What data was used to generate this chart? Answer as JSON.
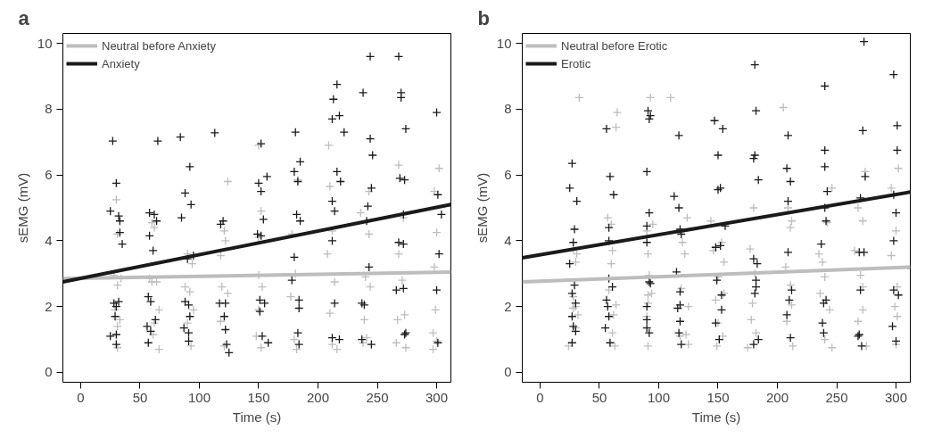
{
  "chart_data": [
    {
      "type": "scatter",
      "title": "a",
      "xlabel": "Time (s)",
      "ylabel": "sEMG (mV)",
      "xlim": [
        -15,
        312
      ],
      "ylim": [
        -0.3,
        10.3
      ],
      "xticks": [
        0,
        50,
        100,
        150,
        200,
        250,
        300
      ],
      "yticks": [
        0,
        2,
        4,
        6,
        8,
        10
      ],
      "legend": "top left",
      "grid": false,
      "series": [
        {
          "marker": "cross",
          "color": "#bdbdbd",
          "x": [
            30,
            31,
            31,
            28,
            34,
            29,
            33,
            31,
            31,
            60,
            62,
            60,
            64,
            58,
            66,
            62,
            61,
            66,
            90,
            94,
            88,
            92,
            90,
            93,
            95,
            124,
            121,
            122,
            118,
            119,
            124,
            118,
            121,
            150,
            152,
            150,
            150,
            153,
            150,
            148,
            152,
            183,
            178,
            181,
            177,
            180,
            182,
            209,
            210,
            212,
            208,
            214,
            210,
            216,
            212,
            236,
            243,
            243,
            240,
            244,
            239,
            241,
            238,
            268,
            272,
            268,
            271,
            267,
            273,
            266,
            274,
            302,
            298,
            300,
            298,
            299,
            297,
            297,
            300
          ],
          "values": [
            5.25,
            4.2,
            2.65,
            2.95,
            2.85,
            1.9,
            1.6,
            1.4,
            0.75,
            4.55,
            4.4,
            2.75,
            2.75,
            2.85,
            1.9,
            1.5,
            1.15,
            0.7,
            3.6,
            3.3,
            2.6,
            2.45,
            1.5,
            0.8,
            1.9,
            5.8,
            4.3,
            4.0,
            3.55,
            2.6,
            2.4,
            1.55,
            0.8,
            6.9,
            4.9,
            4.1,
            2.95,
            2.6,
            1.9,
            1.1,
            0.75,
            5.85,
            4.2,
            3.0,
            2.3,
            1.0,
            0.7,
            6.9,
            5.65,
            4.3,
            3.6,
            2.75,
            1.8,
            0.7,
            0.85,
            4.85,
            5.5,
            4.2,
            2.9,
            2.6,
            1.6,
            1.05,
            0.9,
            6.3,
            4.7,
            3.6,
            2.8,
            1.6,
            1.75,
            0.9,
            0.75,
            6.2,
            5.5,
            4.25,
            3.2,
            1.9,
            1.2,
            0.7,
            0.95
          ]
        },
        {
          "marker": "cross",
          "color": "#1a1a1a",
          "x": [
            27,
            30,
            25,
            32,
            33,
            33,
            35,
            28,
            30,
            32,
            29,
            25,
            30,
            30,
            65,
            58,
            62,
            64,
            58,
            61,
            57,
            59,
            63,
            56,
            59,
            57,
            84,
            92,
            88,
            85,
            93,
            95,
            90,
            88,
            91,
            92,
            87,
            91,
            91,
            113,
            120,
            118,
            117,
            122,
            121,
            122,
            123,
            125,
            152,
            157,
            150,
            152,
            154,
            149,
            152,
            151,
            155,
            151,
            158,
            153,
            181,
            185,
            180,
            183,
            182,
            185,
            180,
            184,
            184,
            178,
            183,
            184,
            213,
            216,
            212,
            218,
            222,
            216,
            219,
            212,
            214,
            212,
            214,
            212,
            218,
            238,
            244,
            244,
            246,
            245,
            242,
            241,
            243,
            237,
            239,
            237,
            245,
            268,
            270,
            270,
            274,
            269,
            273,
            272,
            268,
            272,
            266,
            272,
            274,
            273,
            300,
            301,
            304,
            302,
            300,
            301
          ],
          "values": [
            7.03,
            5.75,
            4.9,
            4.75,
            4.6,
            4.25,
            3.9,
            2.1,
            2.0,
            2.15,
            1.7,
            1.1,
            1.15,
            0.85,
            7.03,
            4.85,
            4.8,
            4.6,
            4.15,
            3.7,
            2.3,
            2.15,
            1.6,
            1.4,
            1.25,
            0.9,
            7.15,
            6.25,
            5.45,
            4.7,
            5.1,
            3.55,
            3.45,
            2.15,
            2.05,
            1.7,
            1.35,
            1.2,
            0.95,
            7.28,
            4.6,
            4.5,
            2.1,
            2.1,
            1.7,
            1.3,
            0.85,
            0.6,
            6.95,
            5.95,
            5.75,
            5.5,
            4.65,
            4.2,
            4.15,
            2.2,
            2.1,
            1.85,
            0.9,
            1.1,
            7.3,
            6.4,
            6.1,
            5.8,
            4.8,
            4.6,
            3.5,
            2.2,
            1.95,
            2.8,
            1.2,
            0.85,
            8.3,
            8.75,
            7.7,
            7.8,
            7.3,
            6.1,
            5.8,
            5.2,
            4.9,
            4.0,
            2.1,
            1.05,
            1.0,
            8.5,
            9.6,
            7.1,
            6.6,
            5.6,
            5.05,
            4.6,
            3.2,
            2.1,
            2.05,
            1.0,
            0.85,
            9.6,
            8.5,
            8.35,
            7.4,
            5.9,
            5.85,
            4.8,
            3.95,
            3.9,
            2.5,
            2.55,
            1.2,
            1.15,
            7.9,
            5.4,
            4.8,
            3.6,
            2.5,
            0.9
          ]
        },
        {
          "type": "line",
          "marker": "none",
          "name": "Neutral before Anxiety",
          "color": "#bdbdbd",
          "x": [
            -15,
            312
          ],
          "values": [
            2.85,
            3.05
          ]
        },
        {
          "type": "line",
          "marker": "none",
          "name": "Anxiety",
          "color": "#1a1a1a",
          "x": [
            -15,
            312
          ],
          "values": [
            2.75,
            5.1
          ]
        }
      ]
    },
    {
      "type": "scatter",
      "title": "b",
      "xlabel": "Time (s)",
      "ylabel": "sEMG (mV)",
      "xlim": [
        -15,
        312
      ],
      "ylim": [
        -0.3,
        10.3
      ],
      "xticks": [
        0,
        50,
        100,
        150,
        200,
        250,
        300
      ],
      "yticks": [
        0,
        2,
        4,
        6,
        8,
        10
      ],
      "legend": "top left",
      "grid": false,
      "series": [
        {
          "marker": "cross",
          "color": "#bdbdbd",
          "x": [
            33,
            28,
            31,
            30,
            28,
            30,
            28,
            32,
            30,
            24,
            65,
            64,
            57,
            60,
            61,
            60,
            58,
            64,
            62,
            61,
            63,
            93,
            90,
            95,
            91,
            92,
            91,
            94,
            91,
            90,
            91,
            110,
            124,
            120,
            122,
            119,
            125,
            118,
            123,
            125,
            144,
            153,
            146,
            155,
            150,
            155,
            148,
            150,
            154,
            149,
            180,
            177,
            181,
            179,
            178,
            182,
            175,
            205,
            209,
            211,
            212,
            207,
            211,
            212,
            208,
            213,
            246,
            242,
            235,
            238,
            240,
            236,
            244,
            240,
            246,
            274,
            268,
            272,
            265,
            270,
            272,
            272,
            268,
            275,
            302,
            296,
            300,
            296,
            301,
            299,
            301,
            300
          ],
          "values": [
            8.35,
            3.75,
            3.6,
            3.35,
            2.3,
            2.0,
            1.95,
            1.75,
            1.35,
            0.8,
            7.9,
            7.45,
            4.7,
            4.5,
            3.7,
            3.3,
            2.5,
            2.05,
            1.75,
            1.2,
            0.8,
            8.35,
            4.3,
            4.5,
            3.6,
            2.95,
            2.35,
            2.4,
            2.1,
            1.7,
            0.8,
            8.35,
            4.7,
            3.95,
            3.6,
            2.55,
            2.0,
            1.1,
            1.15,
            0.85,
            4.6,
            3.95,
            3.7,
            3.35,
            2.9,
            2.4,
            2.2,
            1.5,
            1.1,
            0.8,
            5.0,
            3.75,
            3.0,
            2.1,
            1.6,
            1.2,
            0.75,
            8.05,
            5.0,
            4.4,
            4.6,
            3.2,
            2.65,
            2.05,
            1.55,
            0.8,
            5.6,
            4.55,
            3.6,
            3.35,
            2.9,
            2.4,
            1.9,
            1.0,
            0.75,
            6.1,
            5.0,
            4.6,
            3.7,
            2.95,
            2.6,
            1.9,
            1.55,
            0.8,
            6.2,
            5.6,
            4.3,
            3.55,
            2.6,
            2.0,
            1.7,
            0.85
          ]
        },
        {
          "marker": "cross",
          "color": "#1a1a1a",
          "x": [
            27,
            25,
            31,
            29,
            28,
            25,
            29,
            27,
            30,
            27,
            28,
            30,
            27,
            56,
            59,
            62,
            58,
            58,
            58,
            61,
            56,
            57,
            58,
            55,
            59,
            91,
            93,
            92,
            90,
            92,
            90,
            90,
            92,
            93,
            90,
            90,
            90,
            92,
            117,
            113,
            117,
            118,
            119,
            115,
            118,
            118,
            116,
            118,
            117,
            119,
            147,
            154,
            150,
            152,
            150,
            156,
            152,
            148,
            149,
            153,
            153,
            148,
            151,
            181,
            182,
            181,
            180,
            184,
            180,
            183,
            182,
            182,
            181,
            180,
            184,
            209,
            208,
            211,
            209,
            209,
            212,
            210,
            208,
            211,
            240,
            240,
            240,
            242,
            240,
            241,
            237,
            241,
            239,
            238,
            239,
            273,
            272,
            274,
            270,
            269,
            273,
            270,
            268,
            269,
            271,
            298,
            301,
            301,
            298,
            300,
            298,
            298,
            302,
            297,
            300
          ],
          "values": [
            6.35,
            5.6,
            5.2,
            4.35,
            3.95,
            3.3,
            2.65,
            2.4,
            2.1,
            1.7,
            1.4,
            1.25,
            0.9,
            7.4,
            5.95,
            5.4,
            4.4,
            4.0,
            2.85,
            2.6,
            2.2,
            2.0,
            1.7,
            1.35,
            0.9,
            7.95,
            7.8,
            7.7,
            6.1,
            4.85,
            4.45,
            3.95,
            2.75,
            2.7,
            2.0,
            1.6,
            1.35,
            1.2,
            7.2,
            5.35,
            5.0,
            4.35,
            4.2,
            3.05,
            2.45,
            2.05,
            1.95,
            1.55,
            1.2,
            0.85,
            7.65,
            7.4,
            6.6,
            5.6,
            5.55,
            4.45,
            3.85,
            3.8,
            2.8,
            2.35,
            1.9,
            1.5,
            1.0,
            9.35,
            7.95,
            6.6,
            6.5,
            5.85,
            3.45,
            3.3,
            2.8,
            2.6,
            2.4,
            0.85,
            1.0,
            7.2,
            6.2,
            5.8,
            5.2,
            3.65,
            2.5,
            2.2,
            1.75,
            1.05,
            8.7,
            6.75,
            6.25,
            5.5,
            5.0,
            4.6,
            3.9,
            2.2,
            2.1,
            1.5,
            1.2,
            10.05,
            7.35,
            5.95,
            5.3,
            3.65,
            3.65,
            2.5,
            1.1,
            1.15,
            0.8,
            9.05,
            7.5,
            6.75,
            5.4,
            4.85,
            4.0,
            2.5,
            2.35,
            1.4,
            0.95
          ]
        },
        {
          "type": "line",
          "marker": "none",
          "name": "Neutral before Erotic",
          "color": "#bdbdbd",
          "x": [
            -15,
            312
          ],
          "values": [
            2.75,
            3.2
          ]
        },
        {
          "type": "line",
          "marker": "none",
          "name": "Erotic",
          "color": "#1a1a1a",
          "x": [
            -15,
            312
          ],
          "values": [
            3.48,
            5.48
          ]
        }
      ]
    }
  ]
}
